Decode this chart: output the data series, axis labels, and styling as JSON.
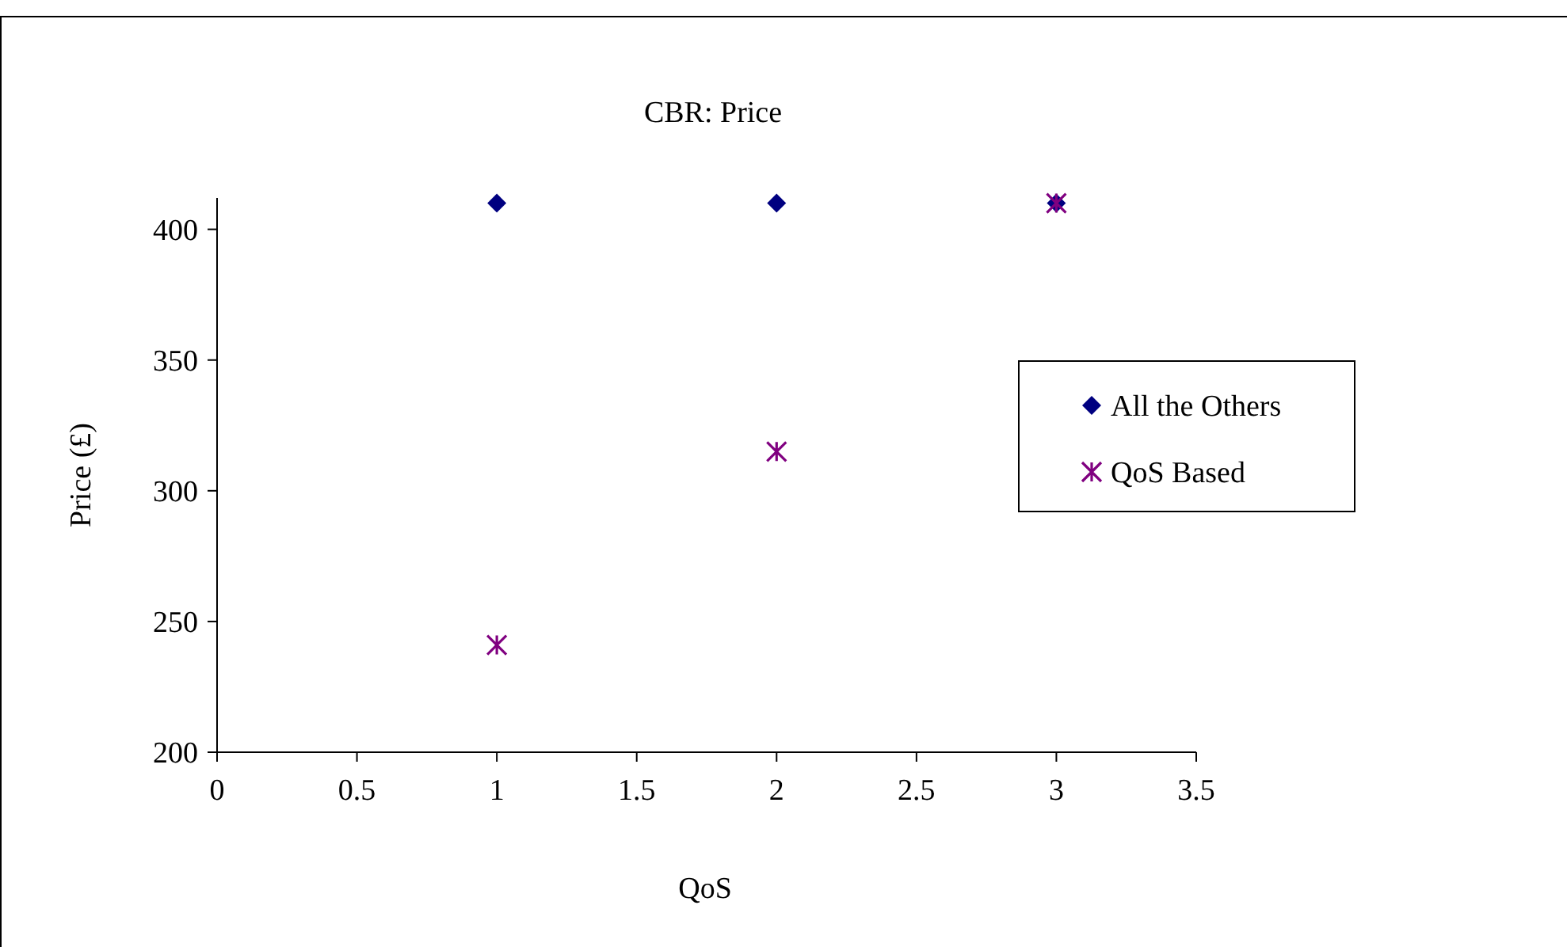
{
  "chart_data": {
    "type": "scatter",
    "title": "CBR: Price",
    "xlabel": "QoS",
    "ylabel": "Price (£)",
    "x": [
      1,
      2,
      3
    ],
    "series": [
      {
        "name": "All the Others",
        "color": "#000080",
        "marker": "diamond",
        "values": [
          410,
          410,
          410
        ]
      },
      {
        "name": "QoS Based",
        "color": "#800080",
        "marker": "cross",
        "values": [
          241,
          315,
          410
        ]
      }
    ],
    "xlim": [
      0,
      3.5
    ],
    "xticks": [
      0,
      0.5,
      1,
      1.5,
      2,
      2.5,
      3,
      3.5
    ],
    "ylim": [
      200,
      412
    ],
    "yticks": [
      200,
      250,
      300,
      350,
      400
    ],
    "grid": false,
    "legend": "right"
  }
}
